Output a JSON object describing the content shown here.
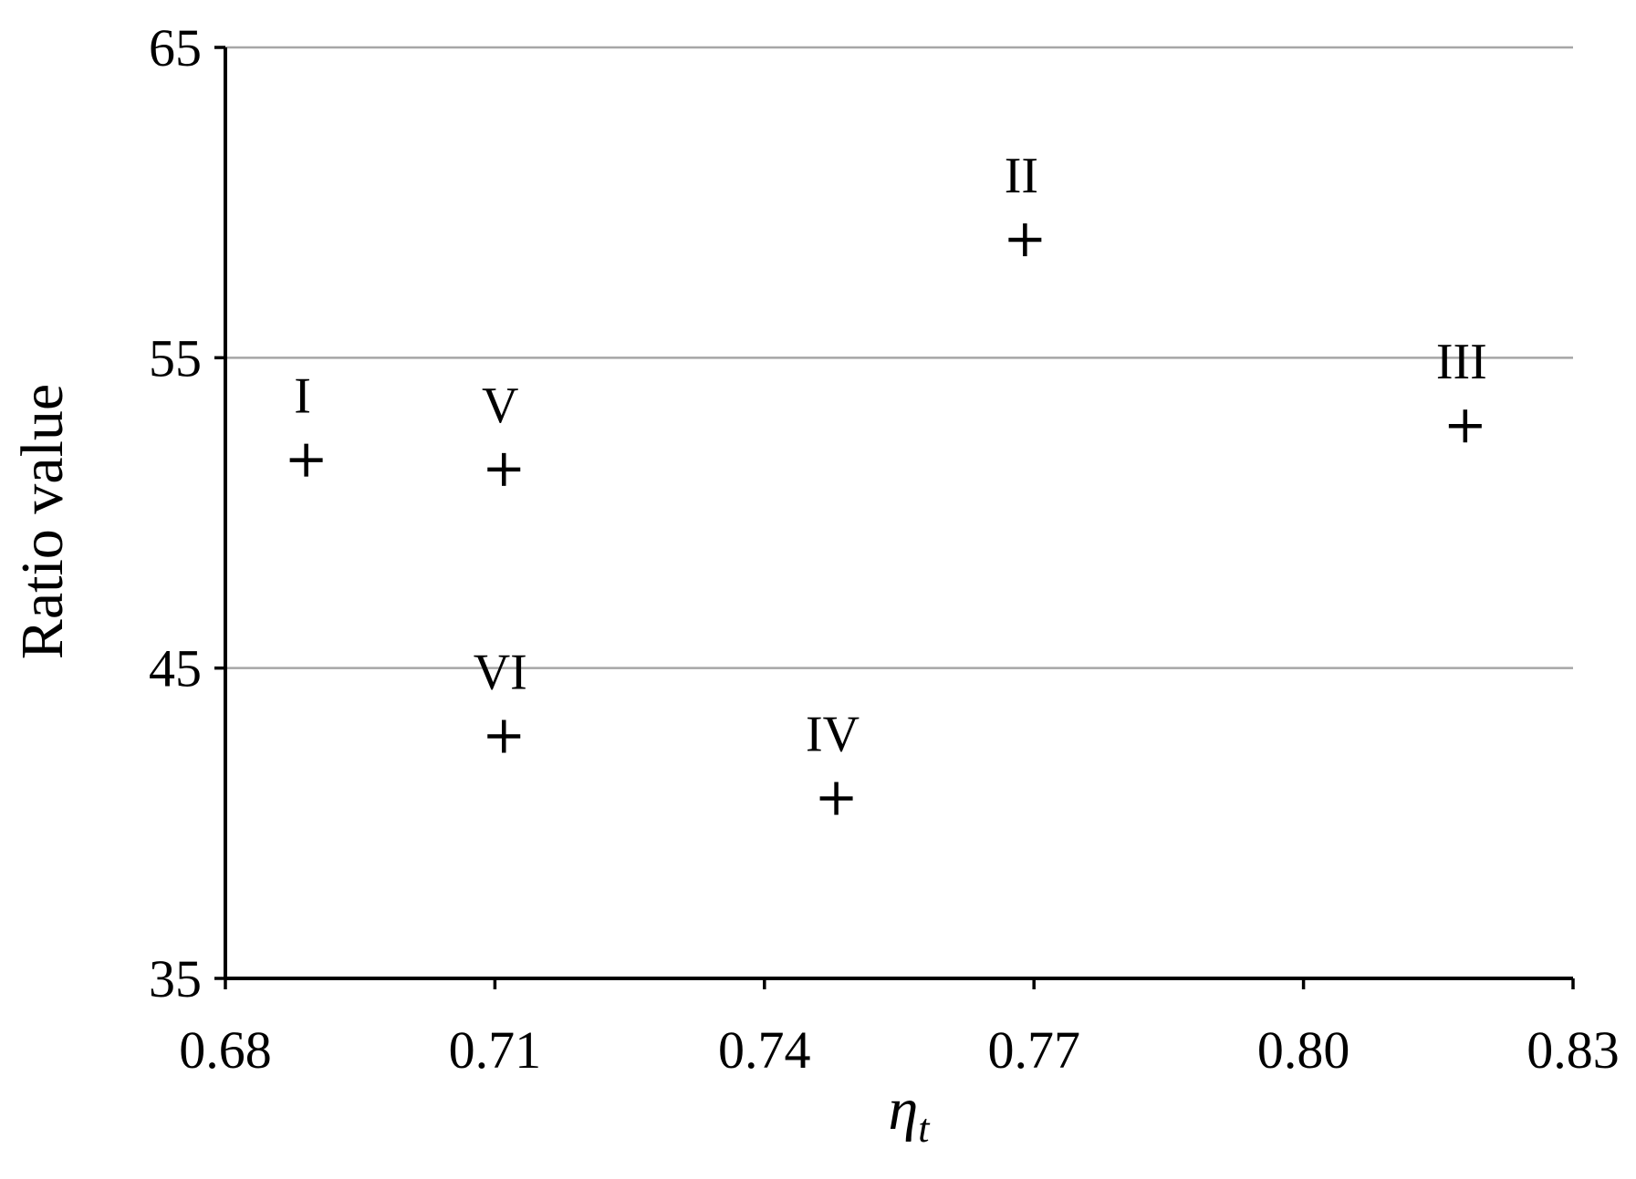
{
  "chart_data": {
    "type": "scatter",
    "title": "",
    "xlabel": "η",
    "xlabel_subscript": "t",
    "ylabel": "Ratio value",
    "xlim": [
      0.68,
      0.83
    ],
    "ylim": [
      35,
      65
    ],
    "x_ticks": [
      0.68,
      0.71,
      0.74,
      0.77,
      0.8,
      0.83
    ],
    "x_tick_labels": [
      "0.68",
      "0.71",
      "0.74",
      "0.77",
      "0.80",
      "0.83"
    ],
    "y_ticks": [
      35,
      45,
      55,
      65
    ],
    "y_tick_labels": [
      "35",
      "45",
      "55",
      "65"
    ],
    "grid": "horizontal",
    "grid_color": "#a6a6a6",
    "marker": "plus",
    "marker_color": "#000000",
    "legend": "none",
    "points": [
      {
        "label": "I",
        "x": 0.689,
        "y": 51.7
      },
      {
        "label": "II",
        "x": 0.769,
        "y": 58.8
      },
      {
        "label": "III",
        "x": 0.818,
        "y": 52.8
      },
      {
        "label": "IV",
        "x": 0.748,
        "y": 40.8
      },
      {
        "label": "V",
        "x": 0.711,
        "y": 51.4
      },
      {
        "label": "VI",
        "x": 0.711,
        "y": 42.8
      }
    ]
  }
}
